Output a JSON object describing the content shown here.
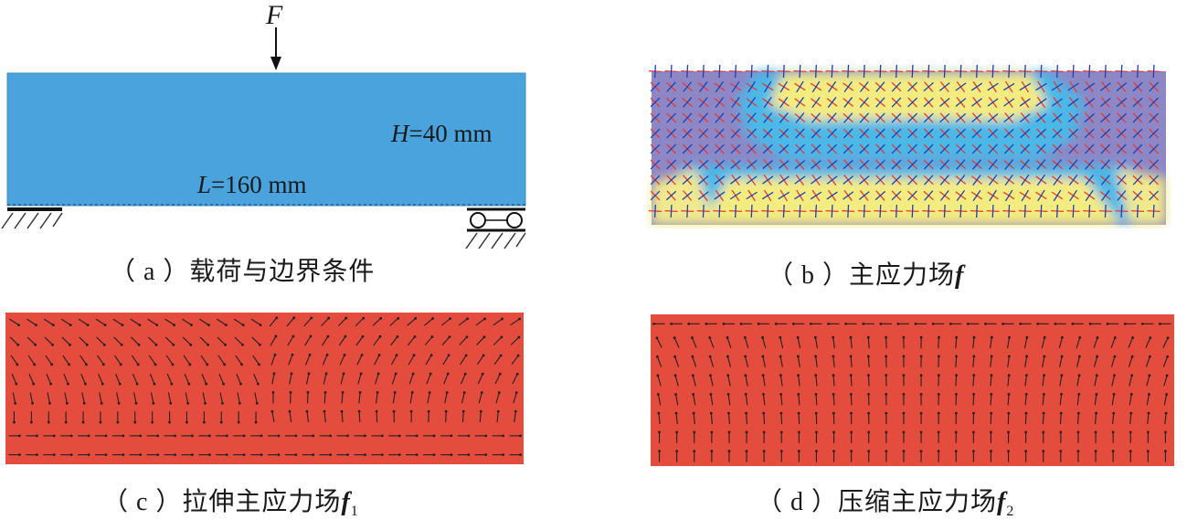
{
  "panel_a": {
    "force_label": "F",
    "height_label_var": "H",
    "height_label_val": "=40 mm",
    "length_label_var": "L",
    "length_label_val": "=160 mm",
    "beam_color": "#4aa3dc",
    "caption": "（ a ）载荷与边界条件"
  },
  "panel_b": {
    "caption_text": "（ b ）主应力场",
    "caption_symbol": "f",
    "colors": {
      "low": "#8b86c7",
      "mid": "#4db6e6",
      "high": "#f5e97a",
      "tension": "#e53935",
      "compression": "#1e40b0"
    }
  },
  "panel_c": {
    "caption_text": "（ c ）拉伸主应力场",
    "caption_symbol": "f",
    "caption_sub": "1",
    "background": "#e44c3e"
  },
  "panel_d": {
    "caption_text": "（ d ）压缩主应力场",
    "caption_symbol": "f",
    "caption_sub": "2",
    "background": "#e44c3e"
  }
}
